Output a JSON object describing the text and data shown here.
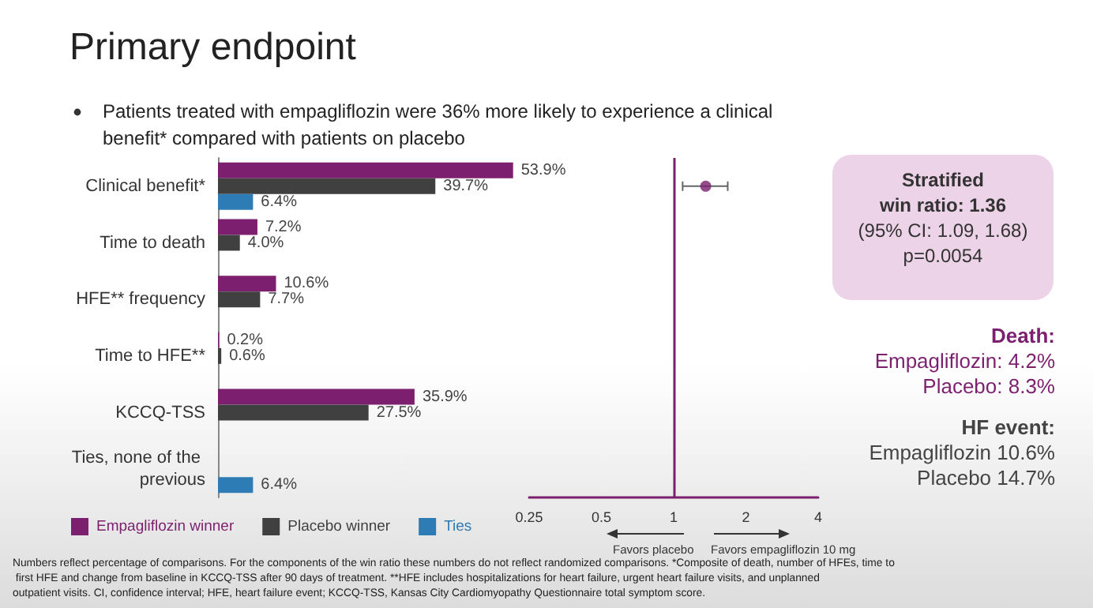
{
  "chart_data": [
    {
      "type": "bar",
      "orientation": "horizontal",
      "title": "Primary endpoint",
      "subtitle": "Patients treated with empagliflozin were 36% more likely to experience a clinical benefit* compared with patients on placebo",
      "categories": [
        "Clinical benefit*",
        "Time to death",
        "HFE** frequency",
        "Time to HFE**",
        "KCCQ-TSS",
        "Ties, none of the previous"
      ],
      "series": [
        {
          "name": "Empagliflozin winner",
          "color": "#7b1f6e",
          "values": [
            53.9,
            7.2,
            10.6,
            0.2,
            35.9,
            null
          ],
          "value_labels": [
            "53.9%",
            "7.2%",
            "10.6%",
            "0.2%",
            "35.9%",
            null
          ]
        },
        {
          "name": "Placebo winner",
          "color": "#404040",
          "values": [
            39.7,
            4.0,
            7.7,
            0.6,
            27.5,
            null
          ],
          "value_labels": [
            "39.7%",
            "4.0%",
            "7.7%",
            "0.6%",
            "27.5%",
            null
          ]
        },
        {
          "name": "Ties",
          "color": "#2e7cb5",
          "values": [
            6.4,
            null,
            null,
            null,
            null,
            6.4
          ],
          "value_labels": [
            "6.4%",
            null,
            null,
            null,
            null,
            "6.4%"
          ]
        }
      ],
      "tick_labels": "y",
      "grid": false,
      "legend": "bottom left",
      "annotations": [
        "Numbers reflect percentage of comparisons. For the components of the win ratio these numbers do not reflect randomized comparisons. *Composite of death, number of HFEs, time to first HFE and change from baseline in KCCQ-TSS after 90 days of treatment. **HFE includes hospitalizations for heart failure, urgent heart failure visits, and unplanned outpatient visits. CI, confidence interval; HFE, heart failure event; KCCQ-TSS, Kansas City Cardiomyopathy Questionnaire total symptom score."
      ]
    },
    {
      "type": "scatter",
      "orientation": "horizontal",
      "color": "#7b1f6e",
      "categories": [
        "Clinical benefit*",
        "Time to death",
        "HFE** frequency",
        "Time to HFE**",
        "KCCQ-TSS",
        "Ties, none of the previous"
      ],
      "values": [
        1.36,
        null,
        null,
        null,
        null,
        null
      ],
      "errors": [
        [
          1.09,
          1.68
        ],
        null,
        null,
        null,
        null,
        null
      ],
      "log": "x",
      "xlim": [
        0.25,
        4
      ],
      "xticks": [
        0.25,
        0.5,
        1,
        2,
        4
      ],
      "tick_labels": "x",
      "marker": "circle",
      "ref_lines": [
        {
          "axis": "x",
          "value": 1,
          "label": null,
          "color": "#7b1f6e"
        }
      ],
      "annotations": [
        "Favors placebo",
        "Favors empagliflozin 10 mg"
      ]
    },
    {
      "type": "other",
      "annotations": [
        "Stratified",
        "win ratio: 1.36",
        "(95% CI: 1.09, 1.68)",
        "p=0.0054",
        "Death:",
        "Empagliflozin: 4.2%",
        "Placebo: 8.3%",
        "HF event:",
        "Empagliflozin 10.6%",
        "Placebo 14.7%"
      ]
    }
  ]
}
